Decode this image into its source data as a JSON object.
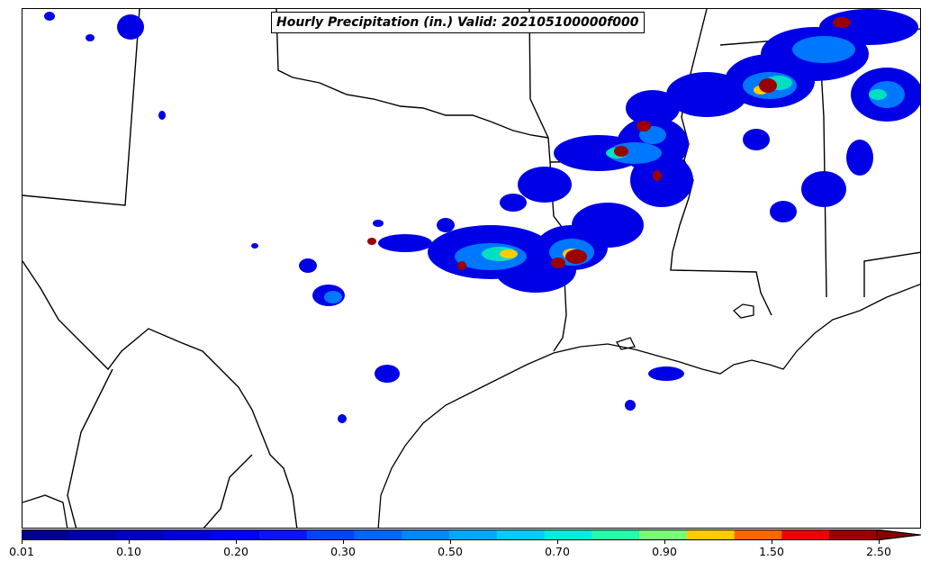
{
  "title": "Hourly Precipitation (in.) Valid: 202105100000f000",
  "colorbar": {
    "colors": [
      "#00008f",
      "#0000a8",
      "#0000c2",
      "#0000db",
      "#0000f5",
      "#0a14ff",
      "#0044ff",
      "#0066ff",
      "#0088ff",
      "#00aaff",
      "#00ccff",
      "#00eedd",
      "#22ffaa",
      "#77ff77",
      "#ffcc00",
      "#ff6600",
      "#ee0000",
      "#990000"
    ],
    "extend_color": "#8a0000",
    "tick_labels": [
      "0.01",
      "0.10",
      "0.20",
      "0.30",
      "0.50",
      "0.70",
      "0.90",
      "1.50",
      "2.50"
    ]
  },
  "legend_levels": [
    "0.01",
    "0.10",
    "0.20",
    "0.30",
    "0.50",
    "0.70",
    "0.90",
    "1.50",
    "2.50"
  ]
}
